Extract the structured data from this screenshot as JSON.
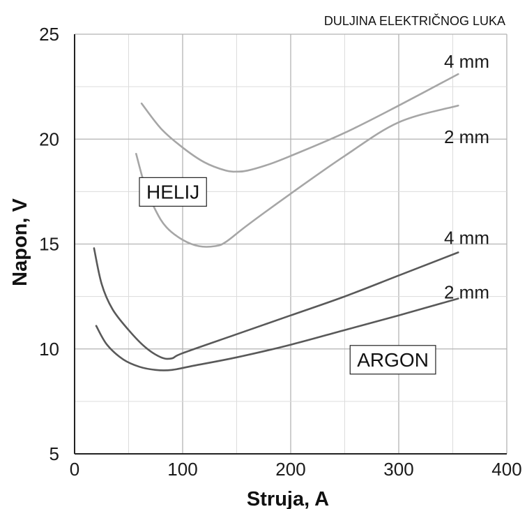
{
  "chart_data": {
    "type": "line",
    "title": "",
    "annotation": "DULJINA ELEKTRIČNOG LUKA",
    "xlabel": "Struja, A",
    "ylabel": "Napon, V",
    "xlim": [
      0,
      400
    ],
    "ylim": [
      5,
      25
    ],
    "xticks": [
      "0",
      "100",
      "200",
      "300",
      "400"
    ],
    "yticks": [
      "5",
      "10",
      "15",
      "20",
      "25"
    ],
    "grid": true,
    "groups": [
      {
        "label": "HELIJ",
        "anchor": {
          "x": 60,
          "y": 17.5
        }
      },
      {
        "label": "ARGON",
        "anchor": {
          "x": 255,
          "y": 9.5
        }
      }
    ],
    "series": [
      {
        "group": "HELIJ",
        "label": "4 mm",
        "color": "#a6a6a6",
        "x": [
          62,
          80,
          100,
          120,
          140,
          150,
          160,
          180,
          200,
          250,
          300,
          355
        ],
        "y": [
          21.7,
          20.5,
          19.6,
          18.9,
          18.5,
          18.45,
          18.5,
          18.8,
          19.2,
          20.3,
          21.6,
          23.1
        ]
      },
      {
        "group": "HELIJ",
        "label": "2 mm",
        "color": "#a6a6a6",
        "x": [
          57,
          65,
          75,
          85,
          100,
          115,
          130,
          140,
          160,
          200,
          250,
          300,
          355
        ],
        "y": [
          19.3,
          17.8,
          16.6,
          15.8,
          15.2,
          14.9,
          14.9,
          15.1,
          15.9,
          17.4,
          19.2,
          20.8,
          21.6
        ]
      },
      {
        "group": "ARGON",
        "label": "4 mm",
        "color": "#595959",
        "x": [
          18,
          25,
          35,
          50,
          65,
          80,
          90,
          100,
          150,
          200,
          250,
          300,
          355
        ],
        "y": [
          14.8,
          13.1,
          11.9,
          10.9,
          10.1,
          9.6,
          9.55,
          9.8,
          10.7,
          11.6,
          12.5,
          13.5,
          14.6
        ]
      },
      {
        "group": "ARGON",
        "label": "2 mm",
        "color": "#595959",
        "x": [
          20,
          30,
          45,
          60,
          75,
          90,
          110,
          150,
          200,
          250,
          300,
          355
        ],
        "y": [
          11.1,
          10.2,
          9.5,
          9.15,
          9.0,
          9.0,
          9.2,
          9.6,
          10.2,
          10.9,
          11.6,
          12.4
        ]
      }
    ],
    "series_label_positions": [
      {
        "label": "4 mm",
        "x": 357,
        "y": 23.7
      },
      {
        "label": "2 mm",
        "x": 357,
        "y": 20.1
      },
      {
        "label": "4 mm",
        "x": 357,
        "y": 15.3
      },
      {
        "label": "2 mm",
        "x": 357,
        "y": 12.7
      }
    ]
  }
}
